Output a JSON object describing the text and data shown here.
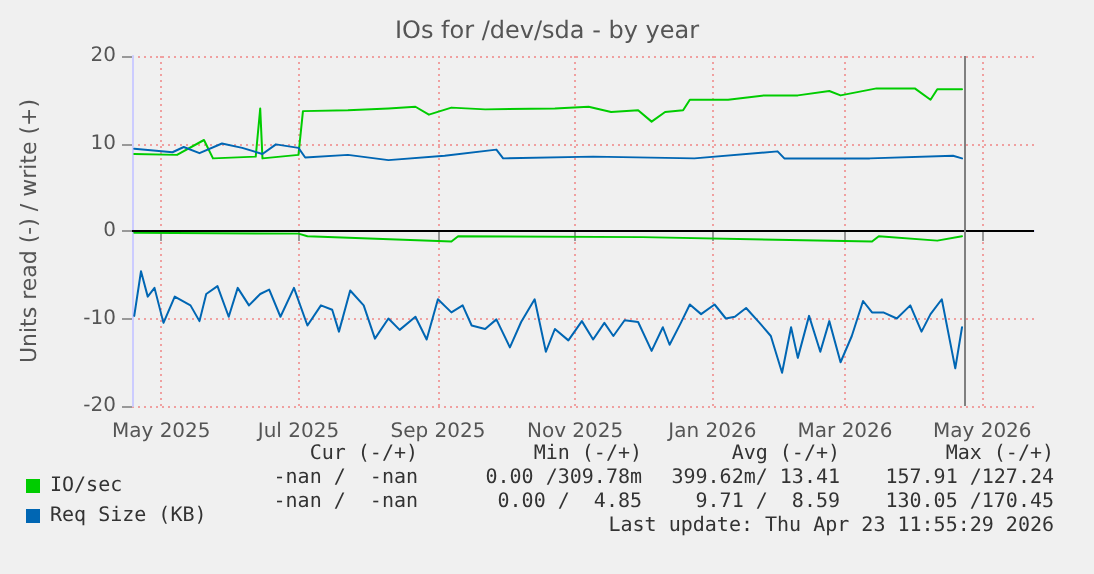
{
  "chart_data": {
    "type": "line",
    "title": "IOs for /dev/sda - by year",
    "ylabel": "Units read (-) / write (+)",
    "xlim": [
      "2025-04-18",
      "2026-05-24"
    ],
    "xticks": [
      {
        "value": "2025-05-01",
        "label": "May 2025"
      },
      {
        "value": "2025-07-01",
        "label": "Jul 2025"
      },
      {
        "value": "2025-09-01",
        "label": "Sep 2025"
      },
      {
        "value": "2025-11-01",
        "label": "Nov 2025"
      },
      {
        "value": "2026-01-01",
        "label": "Jan 2026"
      },
      {
        "value": "2026-03-01",
        "label": "Mar 2026"
      },
      {
        "value": "2026-05-01",
        "label": "May 2026"
      }
    ],
    "ylim": [
      -20,
      20
    ],
    "yticks": [
      -20,
      -10,
      0,
      10,
      20
    ],
    "grid": true,
    "legend": "bottom left",
    "marker": "none",
    "line_style": "solid",
    "series": [
      {
        "name": "IO/sec",
        "color": "#00cc00",
        "x": [
          "2025-04-19",
          "2025-05-08",
          "2025-05-20",
          "2025-05-24",
          "2025-06-12",
          "2025-06-14",
          "2025-06-15",
          "2025-07-01",
          "2025-07-03",
          "2025-07-23",
          "2025-08-10",
          "2025-08-22",
          "2025-08-28",
          "2025-09-07",
          "2025-09-22",
          "2025-10-23",
          "2025-11-07",
          "2025-11-17",
          "2025-11-29",
          "2025-12-05",
          "2025-12-11",
          "2025-12-19",
          "2025-12-22",
          "2026-01-08",
          "2026-01-24",
          "2026-02-08",
          "2026-02-22",
          "2026-02-27",
          "2026-03-15",
          "2026-04-01",
          "2026-04-08",
          "2026-04-11",
          "2026-04-22"
        ],
        "values": [
          8.8,
          8.7,
          10.4,
          8.3,
          8.5,
          14,
          8.3,
          8.7,
          13.7,
          13.8,
          14,
          14.2,
          13.3,
          14.1,
          13.9,
          14,
          14.2,
          13.6,
          13.8,
          12.5,
          13.6,
          13.8,
          15,
          15,
          15.5,
          15.5,
          16,
          15.5,
          16.3,
          16.3,
          15,
          16.2,
          16.2
        ]
      },
      {
        "color": "#00cc00",
        "x": [
          "2025-04-19",
          "2025-07-01",
          "2025-07-05",
          "2025-09-07",
          "2025-09-10",
          "2025-12-01",
          "2026-03-13",
          "2026-03-16",
          "2026-04-11",
          "2026-04-22"
        ],
        "values": [
          -0.2,
          -0.3,
          -0.6,
          -1.2,
          -0.6,
          -0.7,
          -1.2,
          -0.6,
          -1.1,
          -0.6
        ]
      },
      {
        "name": "Req Size (KB)",
        "color": "#0066b3",
        "x": [
          "2025-04-19",
          "2025-05-06",
          "2025-05-11",
          "2025-05-18",
          "2025-05-28",
          "2025-06-06",
          "2025-06-15",
          "2025-06-21",
          "2025-07-01",
          "2025-07-04",
          "2025-07-23",
          "2025-08-10",
          "2025-09-04",
          "2025-09-27",
          "2025-09-30",
          "2025-11-09",
          "2025-12-24",
          "2026-01-30",
          "2026-02-02",
          "2026-03-12",
          "2026-04-18",
          "2026-04-22"
        ],
        "values": [
          9.4,
          9,
          9.6,
          8.9,
          10,
          9.5,
          8.8,
          9.9,
          9.5,
          8.4,
          8.7,
          8.1,
          8.6,
          9.3,
          8.3,
          8.5,
          8.3,
          9.1,
          8.3,
          8.3,
          8.6,
          8.3
        ]
      },
      {
        "color": "#0066b3",
        "x": [
          "2025-04-19",
          "2025-04-22",
          "2025-04-25",
          "2025-04-28",
          "2025-05-02",
          "2025-05-07",
          "2025-05-14",
          "2025-05-18",
          "2025-05-21",
          "2025-05-26",
          "2025-05-31",
          "2025-06-04",
          "2025-06-09",
          "2025-06-14",
          "2025-06-18",
          "2025-06-23",
          "2025-06-29",
          "2025-07-05",
          "2025-07-11",
          "2025-07-16",
          "2025-07-19",
          "2025-07-24",
          "2025-07-30",
          "2025-08-04",
          "2025-08-10",
          "2025-08-15",
          "2025-08-22",
          "2025-08-27",
          "2025-09-01",
          "2025-09-07",
          "2025-09-12",
          "2025-09-16",
          "2025-09-22",
          "2025-09-27",
          "2025-10-03",
          "2025-10-08",
          "2025-10-14",
          "2025-10-19",
          "2025-10-23",
          "2025-10-29",
          "2025-11-04",
          "2025-11-09",
          "2025-11-14",
          "2025-11-18",
          "2025-11-23",
          "2025-11-29",
          "2025-12-05",
          "2025-12-10",
          "2025-12-13",
          "2025-12-18",
          "2025-12-22",
          "2025-12-27",
          "2026-01-02",
          "2026-01-07",
          "2026-01-11",
          "2026-01-16",
          "2026-01-22",
          "2026-01-27",
          "2026-02-01",
          "2026-02-05",
          "2026-02-08",
          "2026-02-13",
          "2026-02-18",
          "2026-02-22",
          "2026-02-27",
          "2026-03-04",
          "2026-03-09",
          "2026-03-13",
          "2026-03-18",
          "2026-03-24",
          "2026-03-30",
          "2026-04-04",
          "2026-04-08",
          "2026-04-13",
          "2026-04-19",
          "2026-04-22"
        ],
        "values": [
          -9.7,
          -4.6,
          -7.5,
          -6.5,
          -10.5,
          -7.5,
          -8.5,
          -10.3,
          -7.2,
          -6.3,
          -9.8,
          -6.5,
          -8.5,
          -7.2,
          -6.7,
          -9.8,
          -6.5,
          -10.8,
          -8.5,
          -9,
          -11.5,
          -6.8,
          -8.5,
          -12.3,
          -10,
          -11.3,
          -9.8,
          -12.4,
          -7.8,
          -9.3,
          -8.5,
          -10.8,
          -11.2,
          -10.1,
          -13.3,
          -10.4,
          -7.8,
          -13.8,
          -11.2,
          -12.5,
          -10.3,
          -12.4,
          -10.5,
          -12,
          -10.2,
          -10.4,
          -13.7,
          -11,
          -13,
          -10.5,
          -8.4,
          -9.5,
          -8.4,
          -10,
          -9.8,
          -8.8,
          -10.5,
          -12,
          -16.2,
          -11,
          -14.5,
          -9.7,
          -13.8,
          -10.3,
          -15,
          -12,
          -8,
          -9.3,
          -9.3,
          -10,
          -8.5,
          -11.5,
          -9.5,
          -7.8,
          -15.7,
          -11
        ]
      }
    ],
    "ref_lines": [
      {
        "axis": "y",
        "value": 0,
        "color": "#000000"
      },
      {
        "axis": "x",
        "value": "2026-04-23T11:55",
        "color": "#808080"
      }
    ],
    "annotations": [
      "Cur (-/+)",
      "Min (-/+)",
      "Avg (-/+)",
      "Max (-/+)",
      "-nan /  -nan",
      "0.00 /309.78m",
      "399.62m/ 13.41",
      "157.91 /127.24",
      "-nan /  -nan",
      "0.00 /  4.85",
      "9.71 /  8.59",
      "130.05 /170.45",
      "Last update: Thu Apr 23 11:55:29 2026"
    ]
  }
}
